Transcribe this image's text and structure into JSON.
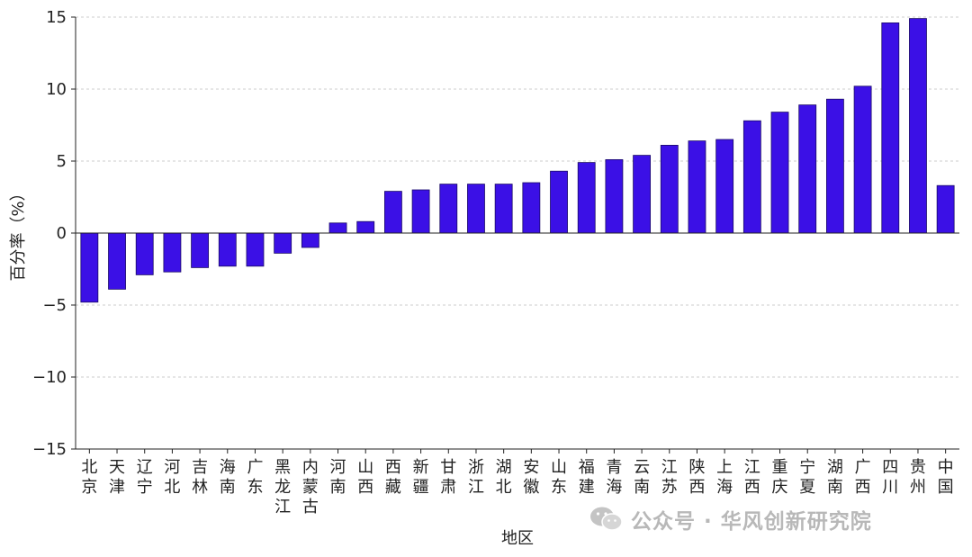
{
  "chart_data": {
    "type": "bar",
    "ylabel": "百分率（%）",
    "xlabel": "地区",
    "ylim": [
      -15,
      15
    ],
    "yticks": [
      -15,
      -10,
      -5,
      0,
      5,
      10,
      15
    ],
    "grid": true,
    "bar_color": "#3b10e6",
    "categories": [
      "北京",
      "天津",
      "辽宁",
      "河北",
      "吉林",
      "海南",
      "广东",
      "黑龙江",
      "内蒙古",
      "河南",
      "山西",
      "西藏",
      "新疆",
      "甘肃",
      "浙江",
      "湖北",
      "安徽",
      "山东",
      "福建",
      "青海",
      "云南",
      "江苏",
      "陕西",
      "上海",
      "江西",
      "重庆",
      "宁夏",
      "湖南",
      "广西",
      "四川",
      "贵州",
      "中国"
    ],
    "values": [
      -4.8,
      -3.9,
      -2.9,
      -2.7,
      -2.4,
      -2.3,
      -2.3,
      -1.4,
      -1.0,
      0.7,
      0.8,
      2.9,
      3.0,
      3.4,
      3.4,
      3.4,
      3.5,
      4.3,
      4.9,
      5.1,
      5.4,
      6.1,
      6.4,
      6.5,
      7.8,
      8.4,
      8.9,
      9.3,
      10.2,
      14.6,
      14.9,
      3.3
    ]
  },
  "watermark": {
    "text": "公众号 · 华风创新研究院",
    "icon": "wechat-icon"
  }
}
